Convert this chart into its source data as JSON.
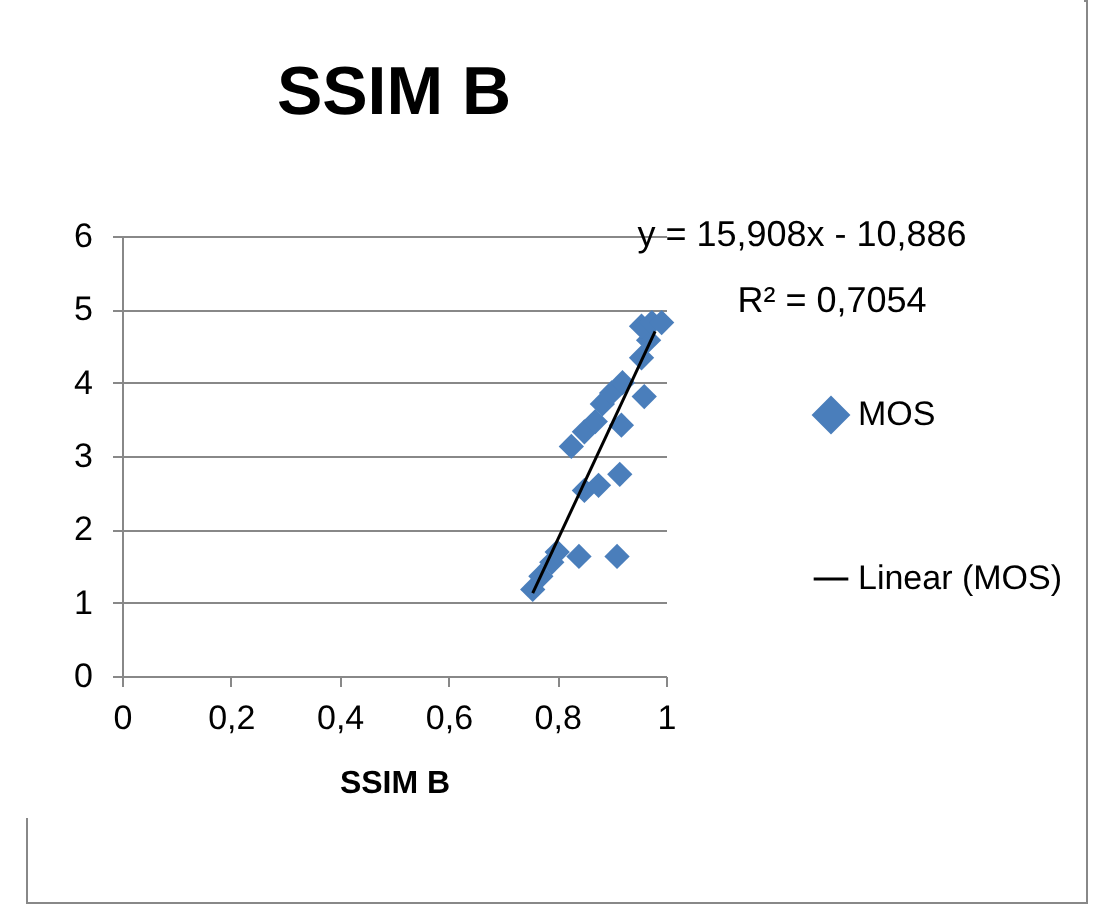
{
  "chart_data": {
    "type": "scatter",
    "title": "SSIM B",
    "xlabel": "SSIM B",
    "xlim": [
      0,
      1
    ],
    "xticks": [
      0,
      {
        "value": 0.2,
        "label": "0,2"
      },
      {
        "value": 0.4,
        "label": "0,4"
      },
      {
        "value": 0.6,
        "label": "0,6"
      },
      {
        "value": 0.8,
        "label": "0,8"
      },
      1
    ],
    "ylim": [
      0,
      6
    ],
    "yticks": [
      0,
      1,
      2,
      3,
      4,
      5,
      6
    ],
    "grid": "y",
    "legend": "right",
    "annotations": [
      "y = 15,908x - 10,886",
      "R² = 0,7054"
    ],
    "series": [
      {
        "name": "MOS",
        "marker": "diamond",
        "color": "#4a7ebb",
        "x": [
          0.755,
          0.77,
          0.79,
          0.8,
          0.84,
          0.91,
          0.85,
          0.876,
          0.915,
          0.826,
          0.85,
          0.87,
          0.918,
          0.883,
          0.9,
          0.92,
          0.96,
          0.955,
          0.968,
          0.955,
          0.974,
          0.992
        ],
        "values": [
          1.18,
          1.36,
          1.55,
          1.69,
          1.63,
          1.63,
          2.53,
          2.6,
          2.75,
          3.13,
          3.33,
          3.47,
          3.42,
          3.71,
          3.86,
          4.0,
          3.81,
          4.34,
          4.58,
          4.77,
          4.82,
          4.82
        ]
      },
      {
        "name": "Linear (MOS)",
        "type": "line",
        "marker": "none",
        "color": "#000000",
        "x": [
          0.755,
          0.98
        ],
        "values": [
          1.13,
          4.7
        ]
      }
    ]
  }
}
